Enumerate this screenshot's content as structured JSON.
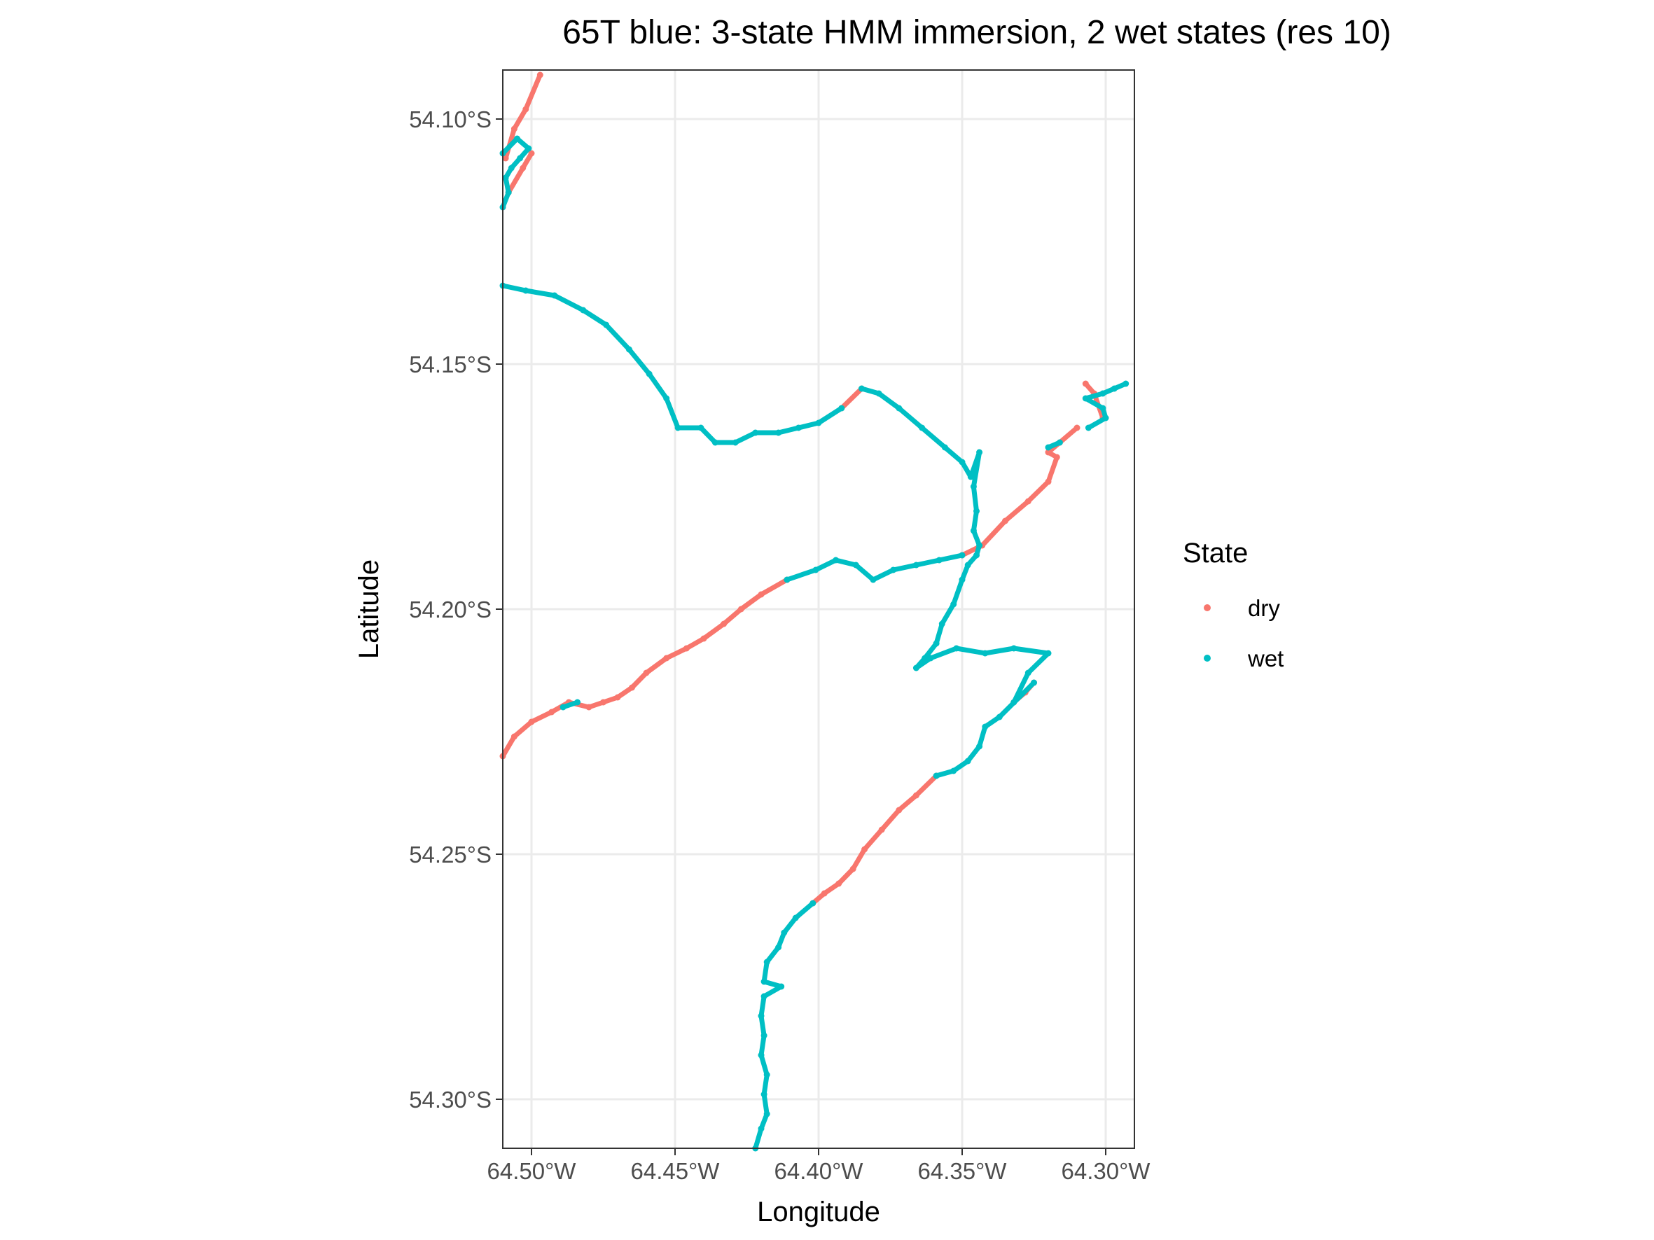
{
  "chart_data": {
    "type": "scatter",
    "title": "65T blue: 3-state HMM immersion, 2 wet states (res 10)",
    "xlabel": "Longitude",
    "ylabel": "Latitude",
    "xlim": [
      -64.51,
      -64.29
    ],
    "ylim": [
      -54.31,
      -54.09
    ],
    "grid": true,
    "legend_position": "right",
    "x_ticks": [
      {
        "value": -64.5,
        "label": "64.50°W"
      },
      {
        "value": -64.45,
        "label": "64.45°W"
      },
      {
        "value": -64.4,
        "label": "64.40°W"
      },
      {
        "value": -64.35,
        "label": "64.35°W"
      },
      {
        "value": -64.3,
        "label": "64.30°W"
      }
    ],
    "y_ticks": [
      {
        "value": -54.1,
        "label": "54.10°S"
      },
      {
        "value": -54.15,
        "label": "54.15°S"
      },
      {
        "value": -54.2,
        "label": "54.20°S"
      },
      {
        "value": -54.25,
        "label": "54.25°S"
      },
      {
        "value": -54.3,
        "label": "54.30°S"
      }
    ],
    "legend": {
      "title": "State",
      "entries": [
        {
          "label": "dry",
          "color": "#F8766D"
        },
        {
          "label": "wet",
          "color": "#00BFC4"
        }
      ]
    },
    "series": [
      {
        "name": "dry",
        "color": "#F8766D",
        "segments": [
          [
            [
              -64.497,
              -54.091
            ],
            [
              -64.502,
              -54.098
            ],
            [
              -64.506,
              -54.102
            ],
            [
              -64.509,
              -54.108
            ]
          ],
          [
            [
              -64.5,
              -54.107
            ],
            [
              -64.503,
              -54.11
            ],
            [
              -64.508,
              -54.115
            ]
          ],
          [
            [
              -64.392,
              -54.159
            ],
            [
              -64.385,
              -54.155
            ]
          ],
          [
            [
              -64.31,
              -54.163
            ],
            [
              -64.316,
              -54.166
            ],
            [
              -64.32,
              -54.168
            ],
            [
              -64.317,
              -54.169
            ],
            [
              -64.32,
              -54.174
            ],
            [
              -64.327,
              -54.178
            ],
            [
              -64.335,
              -54.182
            ],
            [
              -64.343,
              -54.187
            ],
            [
              -64.35,
              -54.189
            ]
          ],
          [
            [
              -64.301,
              -54.161
            ],
            [
              -64.304,
              -54.156
            ],
            [
              -64.307,
              -54.154
            ]
          ],
          [
            [
              -64.411,
              -54.194
            ],
            [
              -64.42,
              -54.197
            ],
            [
              -64.427,
              -54.2
            ],
            [
              -64.433,
              -54.203
            ],
            [
              -64.44,
              -54.206
            ],
            [
              -64.446,
              -54.208
            ],
            [
              -64.453,
              -54.21
            ],
            [
              -64.46,
              -54.213
            ],
            [
              -64.465,
              -54.216
            ],
            [
              -64.47,
              -54.218
            ],
            [
              -64.475,
              -54.219
            ],
            [
              -64.48,
              -54.22
            ],
            [
              -64.487,
              -54.219
            ],
            [
              -64.493,
              -54.221
            ],
            [
              -64.5,
              -54.223
            ],
            [
              -64.506,
              -54.226
            ],
            [
              -64.51,
              -54.23
            ]
          ],
          [
            [
              -64.332,
              -54.219
            ],
            [
              -64.328,
              -54.217
            ],
            [
              -64.325,
              -54.215
            ]
          ],
          [
            [
              -64.359,
              -54.234
            ],
            [
              -64.366,
              -54.238
            ],
            [
              -64.372,
              -54.241
            ],
            [
              -64.378,
              -54.245
            ],
            [
              -64.384,
              -54.249
            ],
            [
              -64.388,
              -54.253
            ],
            [
              -64.393,
              -54.256
            ],
            [
              -64.398,
              -54.258
            ],
            [
              -64.402,
              -54.26
            ]
          ]
        ]
      },
      {
        "name": "wet",
        "color": "#00BFC4",
        "segments": [
          [
            [
              -64.51,
              -54.107
            ],
            [
              -64.505,
              -54.104
            ],
            [
              -64.501,
              -54.106
            ],
            [
              -64.504,
              -54.108
            ],
            [
              -64.507,
              -54.11
            ],
            [
              -64.509,
              -54.112
            ],
            [
              -64.508,
              -54.115
            ],
            [
              -64.51,
              -54.118
            ]
          ],
          [
            [
              -64.51,
              -54.134
            ],
            [
              -64.502,
              -54.135
            ],
            [
              -64.492,
              -54.136
            ],
            [
              -64.482,
              -54.139
            ],
            [
              -64.474,
              -54.142
            ],
            [
              -64.466,
              -54.147
            ],
            [
              -64.459,
              -54.152
            ],
            [
              -64.453,
              -54.157
            ],
            [
              -64.449,
              -54.163
            ],
            [
              -64.441,
              -54.163
            ],
            [
              -64.436,
              -54.166
            ],
            [
              -64.429,
              -54.166
            ],
            [
              -64.422,
              -54.164
            ],
            [
              -64.414,
              -54.164
            ],
            [
              -64.407,
              -54.163
            ],
            [
              -64.4,
              -54.162
            ],
            [
              -64.392,
              -54.159
            ]
          ],
          [
            [
              -64.385,
              -54.155
            ],
            [
              -64.379,
              -54.156
            ],
            [
              -64.372,
              -54.159
            ],
            [
              -64.364,
              -54.163
            ],
            [
              -64.356,
              -54.167
            ],
            [
              -64.35,
              -54.17
            ],
            [
              -64.347,
              -54.173
            ],
            [
              -64.344,
              -54.168
            ],
            [
              -64.346,
              -54.175
            ],
            [
              -64.345,
              -54.18
            ],
            [
              -64.346,
              -54.184
            ],
            [
              -64.344,
              -54.187
            ],
            [
              -64.345,
              -54.189
            ],
            [
              -64.348,
              -54.191
            ],
            [
              -64.35,
              -54.194
            ],
            [
              -64.353,
              -54.199
            ],
            [
              -64.357,
              -54.203
            ],
            [
              -64.359,
              -54.207
            ],
            [
              -64.363,
              -54.21
            ],
            [
              -64.366,
              -54.212
            ],
            [
              -64.361,
              -54.21
            ],
            [
              -64.352,
              -54.208
            ],
            [
              -64.342,
              -54.209
            ],
            [
              -64.332,
              -54.208
            ],
            [
              -64.32,
              -54.209
            ],
            [
              -64.327,
              -54.213
            ],
            [
              -64.332,
              -54.219
            ]
          ],
          [
            [
              -64.35,
              -54.189
            ],
            [
              -64.358,
              -54.19
            ],
            [
              -64.366,
              -54.191
            ],
            [
              -64.374,
              -54.192
            ],
            [
              -64.381,
              -54.194
            ],
            [
              -64.387,
              -54.191
            ],
            [
              -64.394,
              -54.19
            ],
            [
              -64.401,
              -54.192
            ],
            [
              -64.411,
              -54.194
            ]
          ],
          [
            [
              -64.484,
              -54.219
            ],
            [
              -64.489,
              -54.22
            ]
          ],
          [
            [
              -64.325,
              -54.215
            ],
            [
              -64.337,
              -54.222
            ],
            [
              -64.342,
              -54.224
            ],
            [
              -64.344,
              -54.228
            ],
            [
              -64.348,
              -54.231
            ],
            [
              -64.353,
              -54.233
            ],
            [
              -64.359,
              -54.234
            ]
          ],
          [
            [
              -64.402,
              -54.26
            ],
            [
              -64.408,
              -54.263
            ],
            [
              -64.412,
              -54.266
            ],
            [
              -64.414,
              -54.269
            ],
            [
              -64.418,
              -54.272
            ],
            [
              -64.419,
              -54.276
            ],
            [
              -64.413,
              -54.277
            ],
            [
              -64.419,
              -54.279
            ],
            [
              -64.42,
              -54.283
            ],
            [
              -64.419,
              -54.287
            ],
            [
              -64.42,
              -54.291
            ],
            [
              -64.418,
              -54.295
            ],
            [
              -64.419,
              -54.299
            ],
            [
              -64.418,
              -54.303
            ],
            [
              -64.42,
              -54.306
            ],
            [
              -64.422,
              -54.31
            ]
          ],
          [
            [
              -64.293,
              -54.154
            ],
            [
              -64.297,
              -54.155
            ],
            [
              -64.301,
              -54.156
            ],
            [
              -64.307,
              -54.157
            ],
            [
              -64.301,
              -54.159
            ],
            [
              -64.3,
              -54.161
            ],
            [
              -64.306,
              -54.163
            ]
          ],
          [
            [
              -64.316,
              -54.166
            ],
            [
              -64.32,
              -54.167
            ]
          ]
        ]
      }
    ]
  }
}
